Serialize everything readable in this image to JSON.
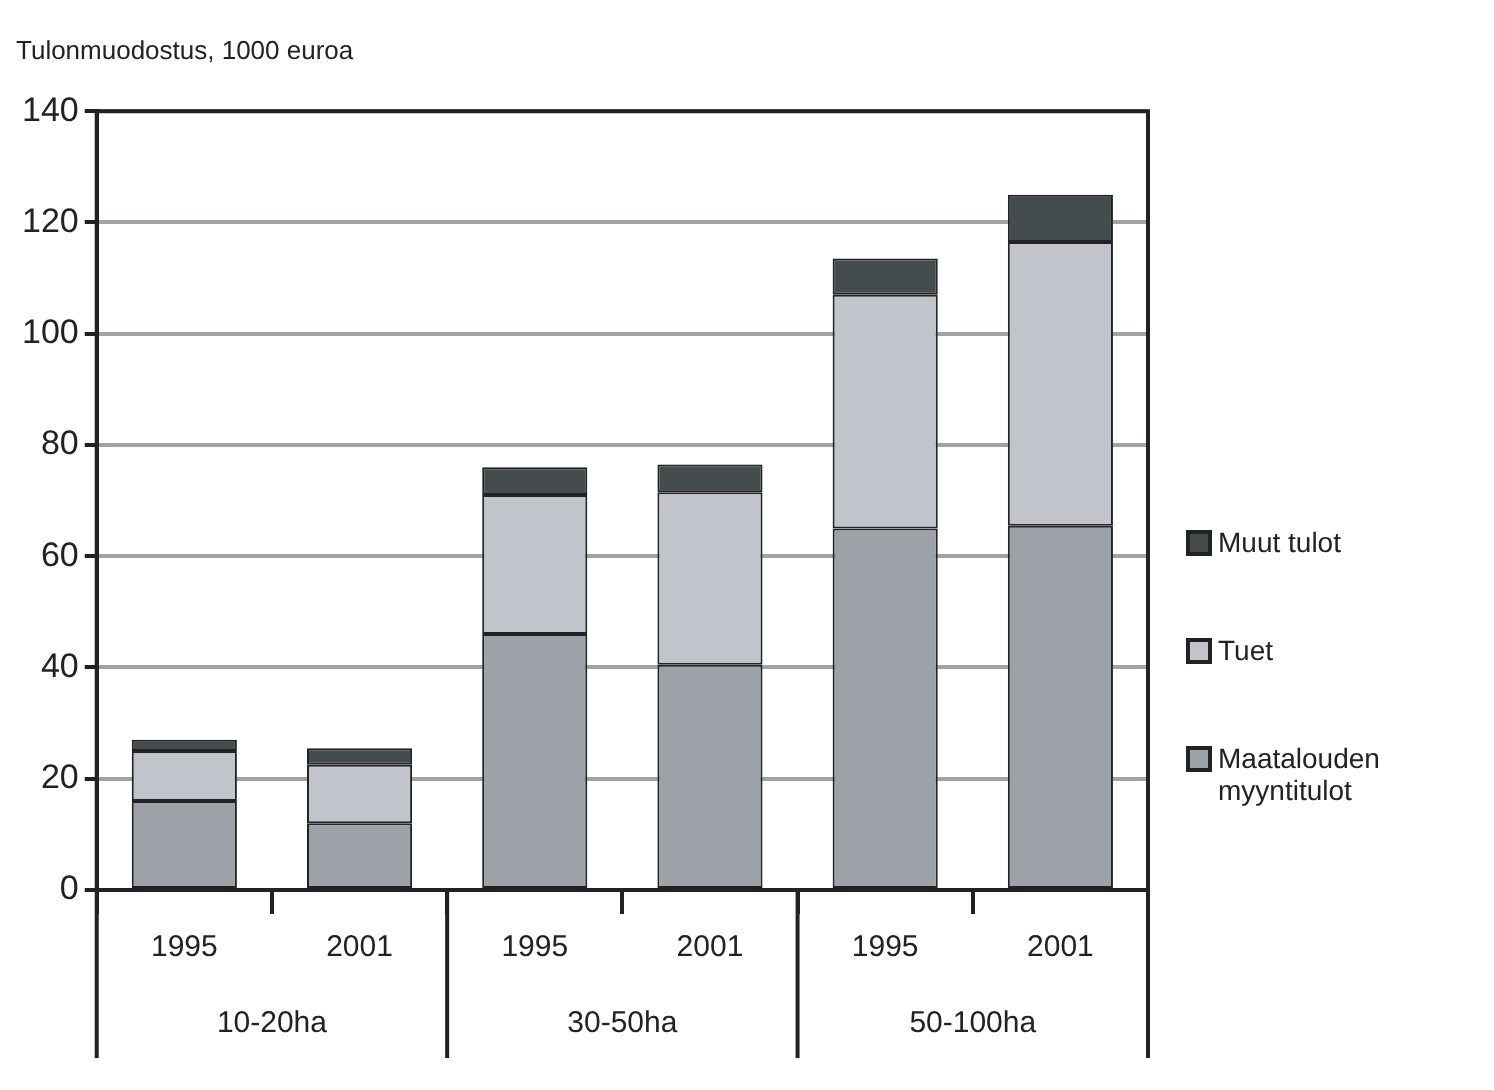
{
  "chart_data": {
    "type": "bar",
    "title": "Tulonmuodostus, 1000 euroa",
    "categories": [
      "1995",
      "2001",
      "1995",
      "2001",
      "1995",
      "2001"
    ],
    "annotations": [
      "10-20ha",
      "30-50ha",
      "50-100ha"
    ],
    "series": [
      {
        "name": "Maatalouden myyntitulot",
        "color": "#9da2a8",
        "values": [
          16,
          12,
          46,
          40.5,
          65,
          65.5
        ]
      },
      {
        "name": "Tuet",
        "color": "#c2c4cb",
        "values": [
          9,
          10.5,
          25,
          31,
          42,
          51
        ]
      },
      {
        "name": "Muut tulot",
        "color": "#454c4e",
        "values": [
          2,
          3,
          5,
          5,
          6.5,
          8.5
        ]
      }
    ],
    "stacked": true,
    "ylim": [
      0,
      140
    ],
    "yticks": [
      0,
      20,
      40,
      60,
      80,
      100,
      120,
      140
    ],
    "grid": "y",
    "legend": "right"
  }
}
